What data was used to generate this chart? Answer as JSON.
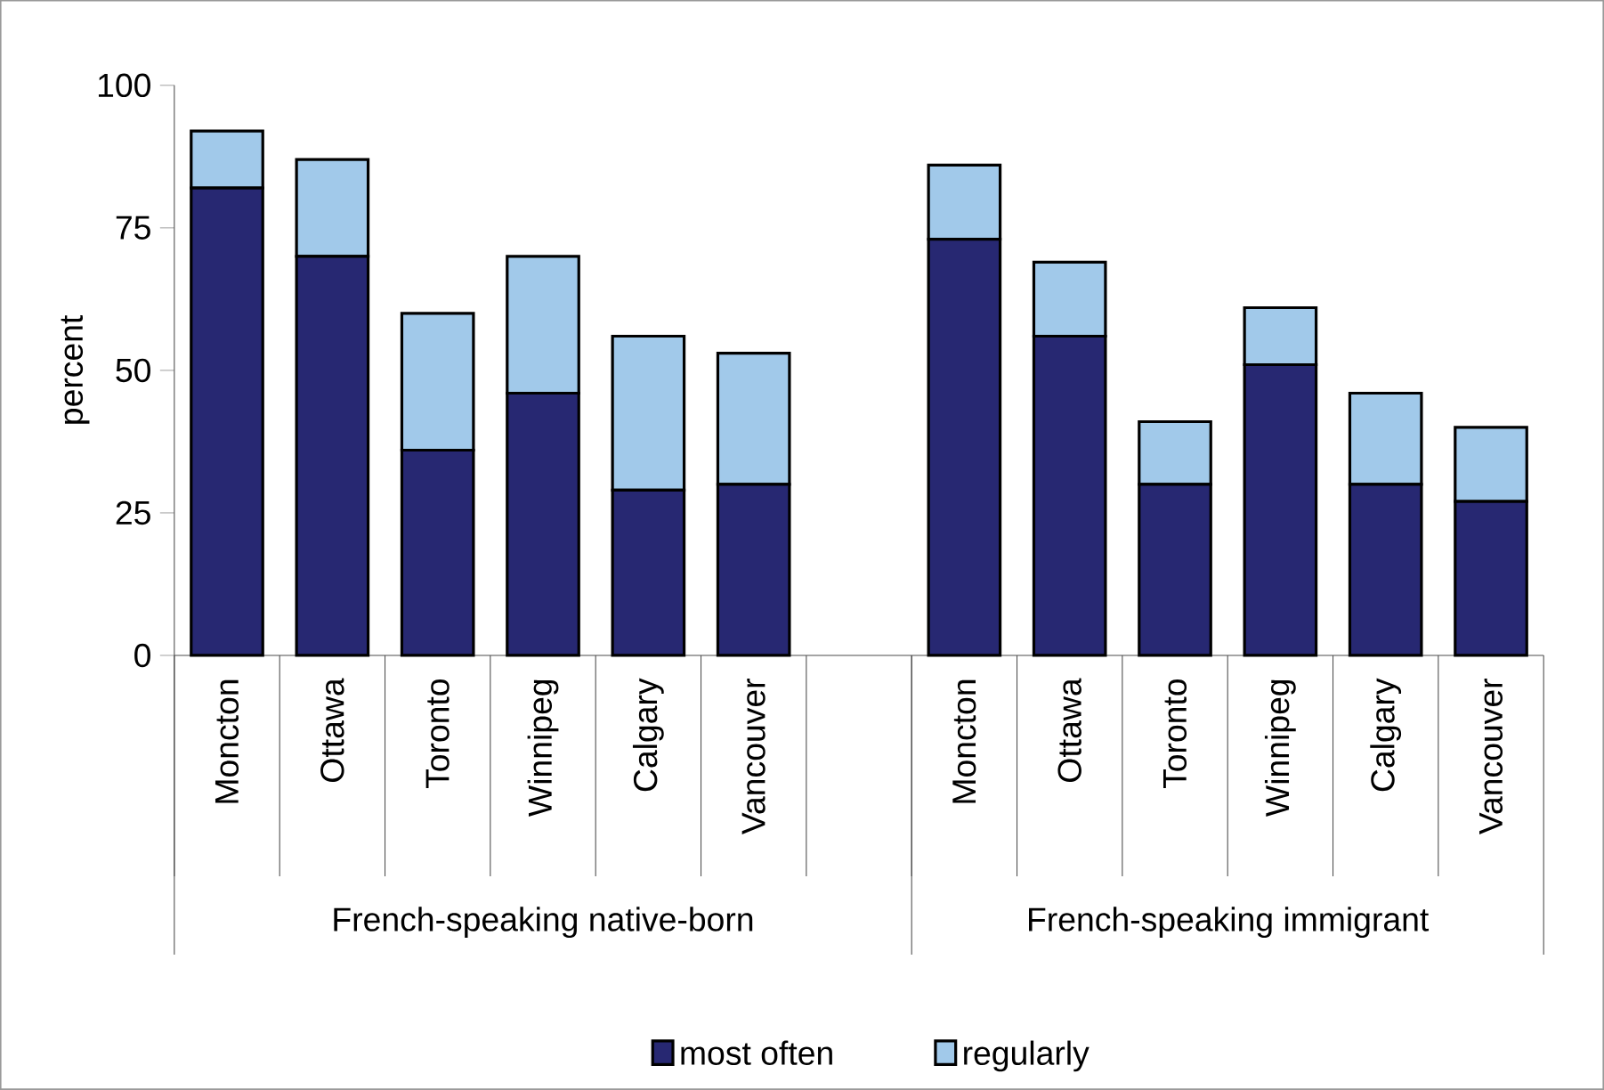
{
  "chart_data": {
    "type": "bar",
    "stacked": true,
    "ylabel": "percent",
    "categories": [
      "Moncton",
      "Ottawa",
      "Toronto",
      "Winnipeg",
      "Calgary",
      "Vancouver",
      null,
      "Moncton",
      "Ottawa",
      "Toronto",
      "Winnipeg",
      "Calgary",
      "Vancouver"
    ],
    "series": [
      {
        "name": "most often",
        "color": "#272872",
        "values": [
          82,
          70,
          36,
          46,
          29,
          30,
          null,
          73,
          56,
          30,
          51,
          30,
          27
        ]
      },
      {
        "name": "regularly",
        "color": "#a1c9ea",
        "values": [
          10,
          17,
          24,
          24,
          27,
          23,
          null,
          13,
          13,
          11,
          10,
          16,
          13
        ]
      }
    ],
    "annotations": [
      "French-speaking native-born",
      "French-speaking immigrant"
    ],
    "ylim": [
      0,
      100
    ],
    "yticks": [
      0,
      25,
      50,
      75,
      100
    ],
    "grid": false,
    "legend": "bottom"
  }
}
